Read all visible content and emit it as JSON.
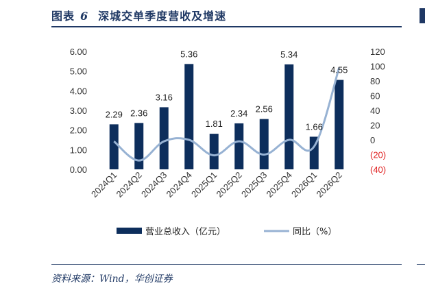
{
  "figure": {
    "label": "图表",
    "number": "6",
    "title": "深城交单季度营收及增速",
    "source": "资料来源：Wind，华创证券"
  },
  "chart_data": {
    "type": "bar",
    "categories": [
      "2024Q1",
      "2024Q2",
      "2024Q3",
      "2024Q4",
      "2025Q1",
      "2025Q2",
      "2025Q3",
      "2025Q4",
      "2026Q1",
      "2026Q2"
    ],
    "series": [
      {
        "name": "营业总收入（亿元）",
        "type": "bar",
        "axis": "left",
        "values": [
          2.29,
          2.36,
          3.16,
          5.36,
          1.81,
          2.34,
          2.56,
          5.34,
          1.66,
          4.55
        ],
        "labels": [
          "2.29",
          "2.36",
          "3.16",
          "5.36",
          "1.81",
          "2.34",
          "2.56",
          "5.34",
          "1.66",
          "4.55"
        ],
        "color": "#0d2e5c"
      },
      {
        "name": "同比（%）",
        "type": "line",
        "axis": "right",
        "values": [
          -2,
          -28,
          -2,
          0,
          -21,
          -2,
          -20,
          0,
          -9,
          98
        ],
        "color": "#97b2d3"
      }
    ],
    "left_axis": {
      "ylim": [
        0,
        6
      ],
      "ticks": [
        "0.00",
        "1.00",
        "2.00",
        "3.00",
        "4.00",
        "5.00",
        "6.00"
      ]
    },
    "right_axis": {
      "ylim": [
        -40,
        120
      ],
      "ticks": [
        "(40)",
        "(20)",
        "0",
        "20",
        "40",
        "60",
        "80",
        "100",
        "120"
      ]
    },
    "legend_position": "bottom",
    "grid": false
  }
}
